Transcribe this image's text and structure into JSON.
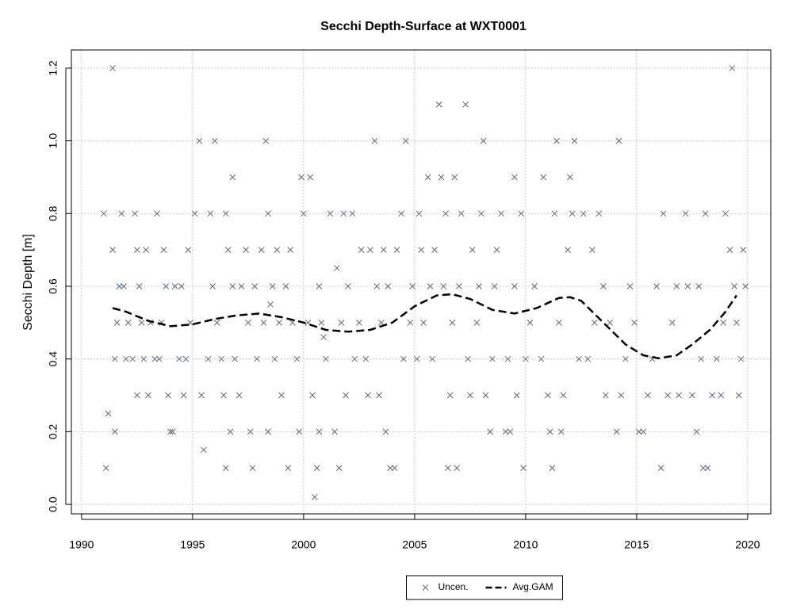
{
  "chart_data": {
    "type": "scatter",
    "title": "Secchi Depth-Surface at WXT0001",
    "y_label": "Secchi Depth [m]",
    "xlim": [
      1989.54,
      2021.04
    ],
    "ylim": [
      -0.026,
      1.25
    ],
    "xticks": [
      1990,
      1995,
      2000,
      2005,
      2010,
      2015,
      2020
    ],
    "yticks": [
      {
        "value": 0,
        "label": "0.0"
      },
      0.2,
      0.4,
      0.6,
      0.8,
      {
        "value": 1,
        "label": "1.0"
      },
      1.2
    ],
    "grid": true,
    "legend": "bottom",
    "series": [
      {
        "name": "Uncen.",
        "color": "#5b6b7c",
        "marker": "x",
        "x": [
          1991,
          1991.1,
          1991.2,
          1991.4,
          1991.4,
          1991.5,
          1991.5,
          1991.6,
          1991.7,
          1991.8,
          1991.9,
          1992,
          1992.1,
          1992.3,
          1992.4,
          1992.5,
          1992.5,
          1992.6,
          1992.7,
          1992.8,
          1992.9,
          1993,
          1993.1,
          1993.3,
          1993.4,
          1993.5,
          1993.6,
          1993.7,
          1993.8,
          1993.9,
          1994,
          1994.1,
          1994.2,
          1994.4,
          1994.5,
          1994.6,
          1994.7,
          1994.8,
          1994.9,
          1995.1,
          1995.3,
          1995.4,
          1995.5,
          1995.7,
          1995.8,
          1995.9,
          1996,
          1996.1,
          1996.3,
          1996.4,
          1996.5,
          1996.5,
          1996.6,
          1996.7,
          1996.8,
          1996.8,
          1996.9,
          1997.1,
          1997.2,
          1997.4,
          1997.5,
          1997.6,
          1997.7,
          1997.8,
          1997.9,
          1998.1,
          1998.2,
          1998.3,
          1998.4,
          1998.4,
          1998.5,
          1998.6,
          1998.7,
          1998.8,
          1998.9,
          1999,
          1999.2,
          1999.3,
          1999.4,
          1999.5,
          1999.7,
          1999.8,
          1999.9,
          2000,
          2000.2,
          2000.3,
          2000.4,
          2000.5,
          2000.6,
          2000.7,
          2000.7,
          2000.8,
          2000.9,
          2001,
          2001.2,
          2001.4,
          2001.5,
          2001.6,
          2001.7,
          2001.8,
          2001.9,
          2002,
          2002.2,
          2002.3,
          2002.5,
          2002.6,
          2002.8,
          2002.9,
          2003,
          2003.2,
          2003.3,
          2003.4,
          2003.5,
          2003.6,
          2003.7,
          2003.8,
          2003.9,
          2004.1,
          2004.2,
          2004.4,
          2004.5,
          2004.6,
          2004.8,
          2004.9,
          2005.1,
          2005.2,
          2005.3,
          2005.4,
          2005.6,
          2005.7,
          2005.8,
          2005.9,
          2006.1,
          2006.2,
          2006.3,
          2006.4,
          2006.5,
          2006.6,
          2006.7,
          2006.8,
          2006.9,
          2007,
          2007.1,
          2007.3,
          2007.4,
          2007.5,
          2007.6,
          2007.8,
          2007.9,
          2008,
          2008.1,
          2008.2,
          2008.4,
          2008.5,
          2008.6,
          2008.7,
          2008.9,
          2009.1,
          2009.2,
          2009.3,
          2009.5,
          2009.5,
          2009.6,
          2009.8,
          2009.9,
          2010,
          2010.2,
          2010.4,
          2010.7,
          2010.8,
          2011,
          2011.1,
          2011.2,
          2011.3,
          2011.4,
          2011.5,
          2011.6,
          2011.7,
          2011.9,
          2012,
          2012.1,
          2012.2,
          2012.4,
          2012.6,
          2012.8,
          2013,
          2013.1,
          2013.3,
          2013.5,
          2013.6,
          2013.8,
          2014.1,
          2014.2,
          2014.3,
          2014.5,
          2014.7,
          2014.9,
          2015.1,
          2015.3,
          2015.5,
          2015.7,
          2015.9,
          2016.1,
          2016.2,
          2016.4,
          2016.6,
          2016.8,
          2016.9,
          2017.2,
          2017.3,
          2017.5,
          2017.7,
          2017.8,
          2017.9,
          2018,
          2018.1,
          2018.2,
          2018.4,
          2018.6,
          2018.8,
          2018.9,
          2019,
          2019.2,
          2019.3,
          2019.4,
          2019.5,
          2019.6,
          2019.7,
          2019.8,
          2019.9
        ],
        "values": [
          0.8,
          0.1,
          0.25,
          1.2,
          0.7,
          0.2,
          0.4,
          0.5,
          0.6,
          0.8,
          0.6,
          0.4,
          0.5,
          0.4,
          0.8,
          0.3,
          0.7,
          0.6,
          0.5,
          0.4,
          0.7,
          0.3,
          0.5,
          0.4,
          0.8,
          0.4,
          0.5,
          0.7,
          0.6,
          0.3,
          0.2,
          0.2,
          0.6,
          0.4,
          0.6,
          0.3,
          0.4,
          0.7,
          0.5,
          0.8,
          1.0,
          0.3,
          0.15,
          0.4,
          0.8,
          0.6,
          1.0,
          0.5,
          0.4,
          0.3,
          0.1,
          0.8,
          0.7,
          0.2,
          0.6,
          0.9,
          0.4,
          0.3,
          0.6,
          0.7,
          0.5,
          0.2,
          0.1,
          0.6,
          0.4,
          0.7,
          0.5,
          1.0,
          0.2,
          0.8,
          0.55,
          0.6,
          0.4,
          0.7,
          0.5,
          0.3,
          0.6,
          0.1,
          0.7,
          0.5,
          0.4,
          0.2,
          0.9,
          0.8,
          0.5,
          0.9,
          0.3,
          0.02,
          0.1,
          0.2,
          0.6,
          0.5,
          0.46,
          0.4,
          0.8,
          0.2,
          0.65,
          0.1,
          0.5,
          0.8,
          0.3,
          0.6,
          0.8,
          0.4,
          0.5,
          0.7,
          0.4,
          0.3,
          0.7,
          1.0,
          0.6,
          0.3,
          0.5,
          0.7,
          0.2,
          0.6,
          0.1,
          0.1,
          0.7,
          0.8,
          0.4,
          1.0,
          0.5,
          0.6,
          0.4,
          0.8,
          0.7,
          0.5,
          0.9,
          0.6,
          0.4,
          0.7,
          1.1,
          0.9,
          0.6,
          0.8,
          0.1,
          0.3,
          0.5,
          0.9,
          0.1,
          0.6,
          0.8,
          1.1,
          0.4,
          0.3,
          0.7,
          0.5,
          0.6,
          0.8,
          1.0,
          0.3,
          0.2,
          0.4,
          0.6,
          0.7,
          0.8,
          0.2,
          0.4,
          0.2,
          0.6,
          0.9,
          0.3,
          0.8,
          0.1,
          0.4,
          0.5,
          0.6,
          0.4,
          0.9,
          0.3,
          0.2,
          0.1,
          0.8,
          1.0,
          0.5,
          0.2,
          0.3,
          0.7,
          0.9,
          0.8,
          1.0,
          0.4,
          0.8,
          0.4,
          0.7,
          0.5,
          0.8,
          0.6,
          0.3,
          0.5,
          0.2,
          1.0,
          0.3,
          0.4,
          0.6,
          0.5,
          0.2,
          0.2,
          0.3,
          0.4,
          0.6,
          0.1,
          0.8,
          0.3,
          0.5,
          0.6,
          0.3,
          0.8,
          0.6,
          0.3,
          0.2,
          0.6,
          0.4,
          0.1,
          0.8,
          0.1,
          0.3,
          0.4,
          0.3,
          0.5,
          0.8,
          0.7,
          1.2,
          0.6,
          0.5,
          0.3,
          0.4,
          0.7,
          0.6
        ]
      },
      {
        "name": "Avg.GAM",
        "color": "#000000",
        "line_style": "dashed",
        "x": [
          1991.4,
          1992,
          1993,
          1994,
          1995,
          1996,
          1997,
          1998,
          1999,
          2000,
          2001,
          2002,
          2003,
          2004,
          2005,
          2006,
          2006.7,
          2007.5,
          2008.5,
          2009.5,
          2010.5,
          2011.5,
          2012,
          2012.5,
          2013.5,
          2014.5,
          2015.3,
          2016,
          2016.8,
          2017.5,
          2018.3,
          2019,
          2019.5
        ],
        "values": [
          0.54,
          0.53,
          0.505,
          0.49,
          0.495,
          0.51,
          0.52,
          0.525,
          0.515,
          0.5,
          0.48,
          0.475,
          0.48,
          0.5,
          0.545,
          0.575,
          0.578,
          0.565,
          0.535,
          0.525,
          0.54,
          0.568,
          0.57,
          0.56,
          0.5,
          0.44,
          0.41,
          0.402,
          0.41,
          0.44,
          0.48,
          0.53,
          0.575
        ]
      }
    ]
  }
}
